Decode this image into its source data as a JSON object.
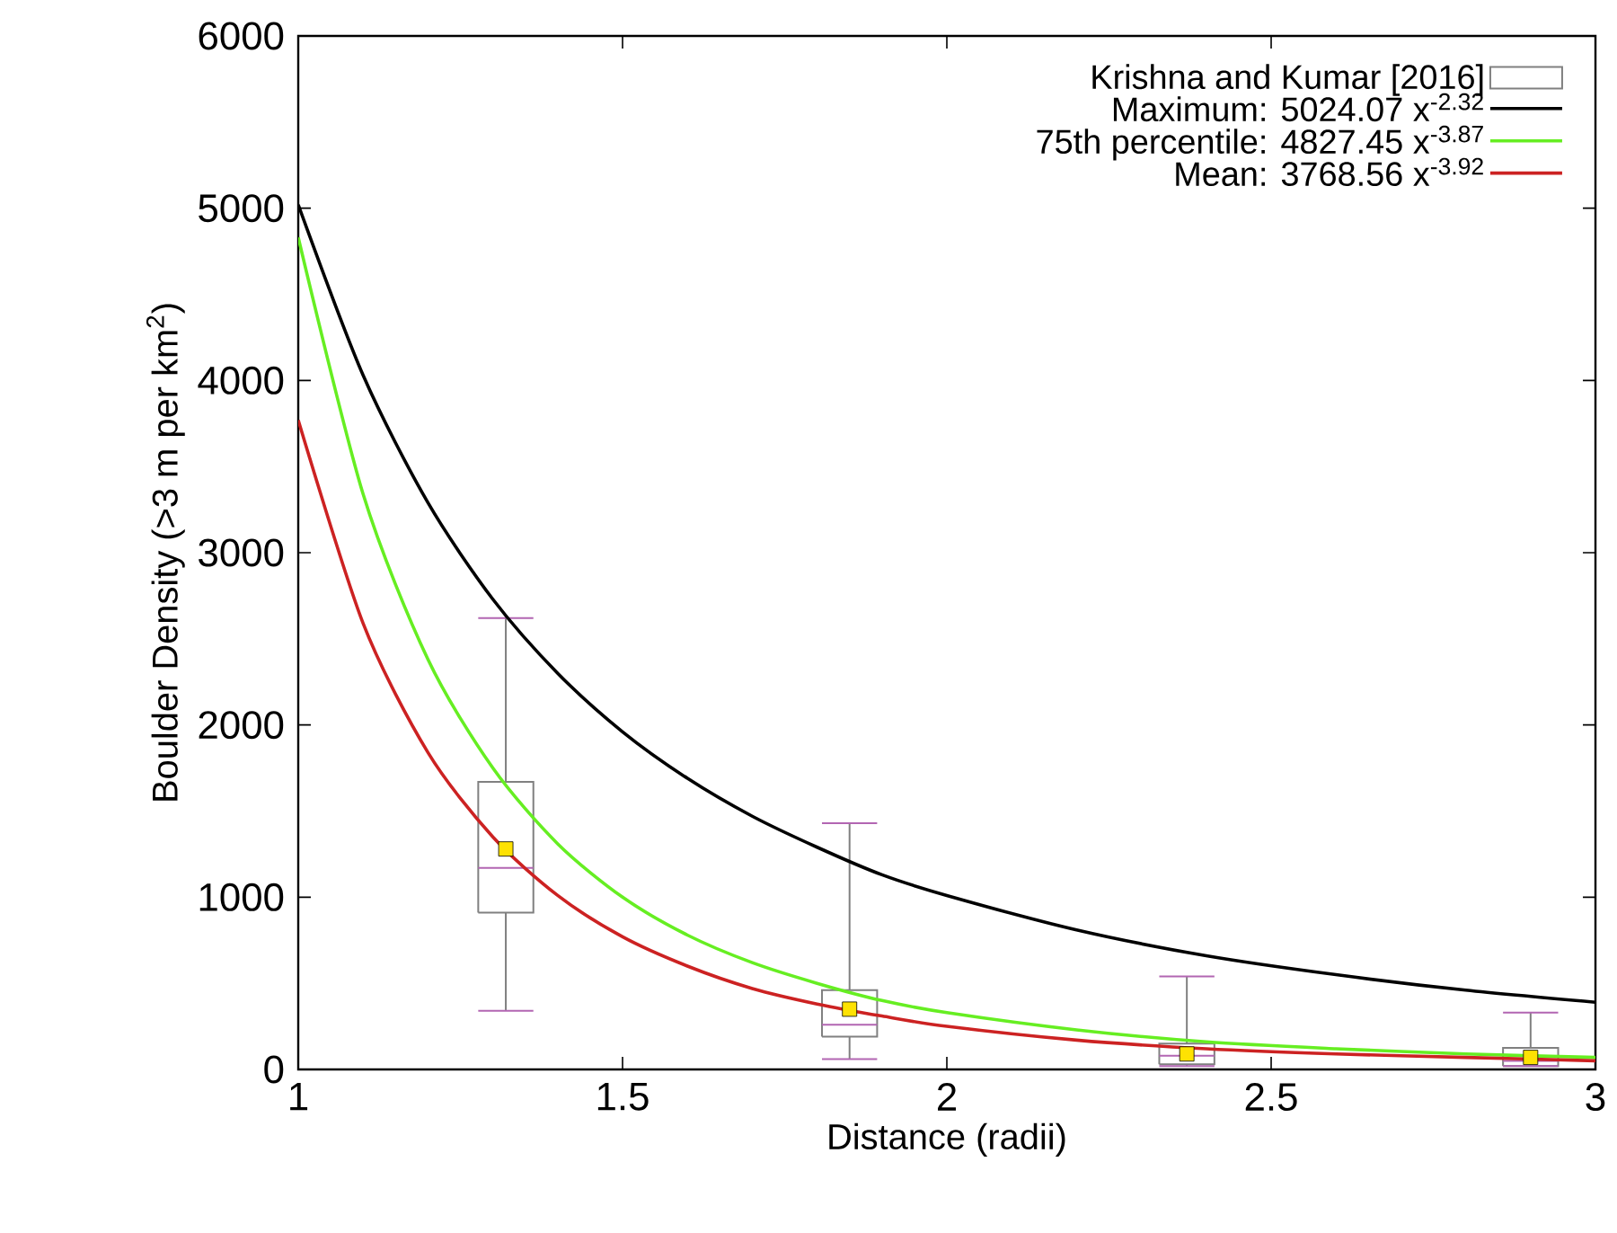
{
  "chart_data": {
    "type": "line",
    "xlabel": "Distance (radii)",
    "ylabel": "Boulder Density (>3 m per km$^{2}$)",
    "xlim": [
      1,
      3
    ],
    "ylim": [
      0,
      6000
    ],
    "xticks": [
      1,
      1.5,
      2,
      2.5,
      3
    ],
    "yticks": [
      0,
      1000,
      2000,
      3000,
      4000,
      5000,
      6000
    ],
    "legend": "top right",
    "grid": false,
    "series": [
      {
        "type": "box",
        "name": "Krishna and Kumar [2016]",
        "color": "#808080",
        "x": [
          1.32,
          1.85,
          2.37,
          2.9
        ],
        "boxes": [
          {
            "low": 340,
            "q1": 910,
            "median": 1170,
            "q3": 1670,
            "high": 2620,
            "mean": 1280
          },
          {
            "low": 60,
            "q1": 190,
            "median": 260,
            "q3": 460,
            "high": 1430,
            "mean": 350
          },
          {
            "low": 20,
            "q1": 30,
            "median": 80,
            "q3": 150,
            "high": 540,
            "mean": 90
          },
          {
            "low": 20,
            "q1": 20,
            "median": 50,
            "q3": 125,
            "high": 330,
            "mean": 70
          }
        ]
      },
      {
        "name": "Maximum: 5024.07 x$^{-2.32}$",
        "color": "#000000",
        "x": [
          1,
          1.1,
          1.2,
          1.3,
          1.4,
          1.5,
          1.6,
          1.7,
          1.8,
          1.9,
          2,
          2.2,
          2.4,
          2.6,
          2.8,
          3
        ],
        "values": [
          5020,
          4030,
          3290,
          2730,
          2300,
          1960,
          1690,
          1470,
          1290,
          1130,
          1010,
          810,
          660,
          550,
          460,
          390
        ]
      },
      {
        "name": "75th percentile: 4827.45 x$^{-3.87}$",
        "color": "#66ee22",
        "x": [
          1,
          1.1,
          1.2,
          1.3,
          1.4,
          1.5,
          1.6,
          1.7,
          1.8,
          1.9,
          2,
          2.2,
          2.4,
          2.6,
          2.8,
          3
        ],
        "values": [
          4830,
          3340,
          2380,
          1750,
          1310,
          1000,
          780,
          620,
          500,
          400,
          330,
          230,
          160,
          120,
          90,
          70
        ]
      },
      {
        "name": "Mean: 3768.56 x$^{-3.92}$",
        "color": "#cc2222",
        "x": [
          1,
          1.1,
          1.2,
          1.3,
          1.4,
          1.5,
          1.6,
          1.7,
          1.8,
          1.9,
          2,
          2.2,
          2.4,
          2.6,
          2.8,
          3
        ],
        "values": [
          3770,
          2590,
          1840,
          1350,
          1010,
          770,
          600,
          470,
          380,
          310,
          250,
          170,
          120,
          90,
          70,
          50
        ]
      }
    ]
  }
}
